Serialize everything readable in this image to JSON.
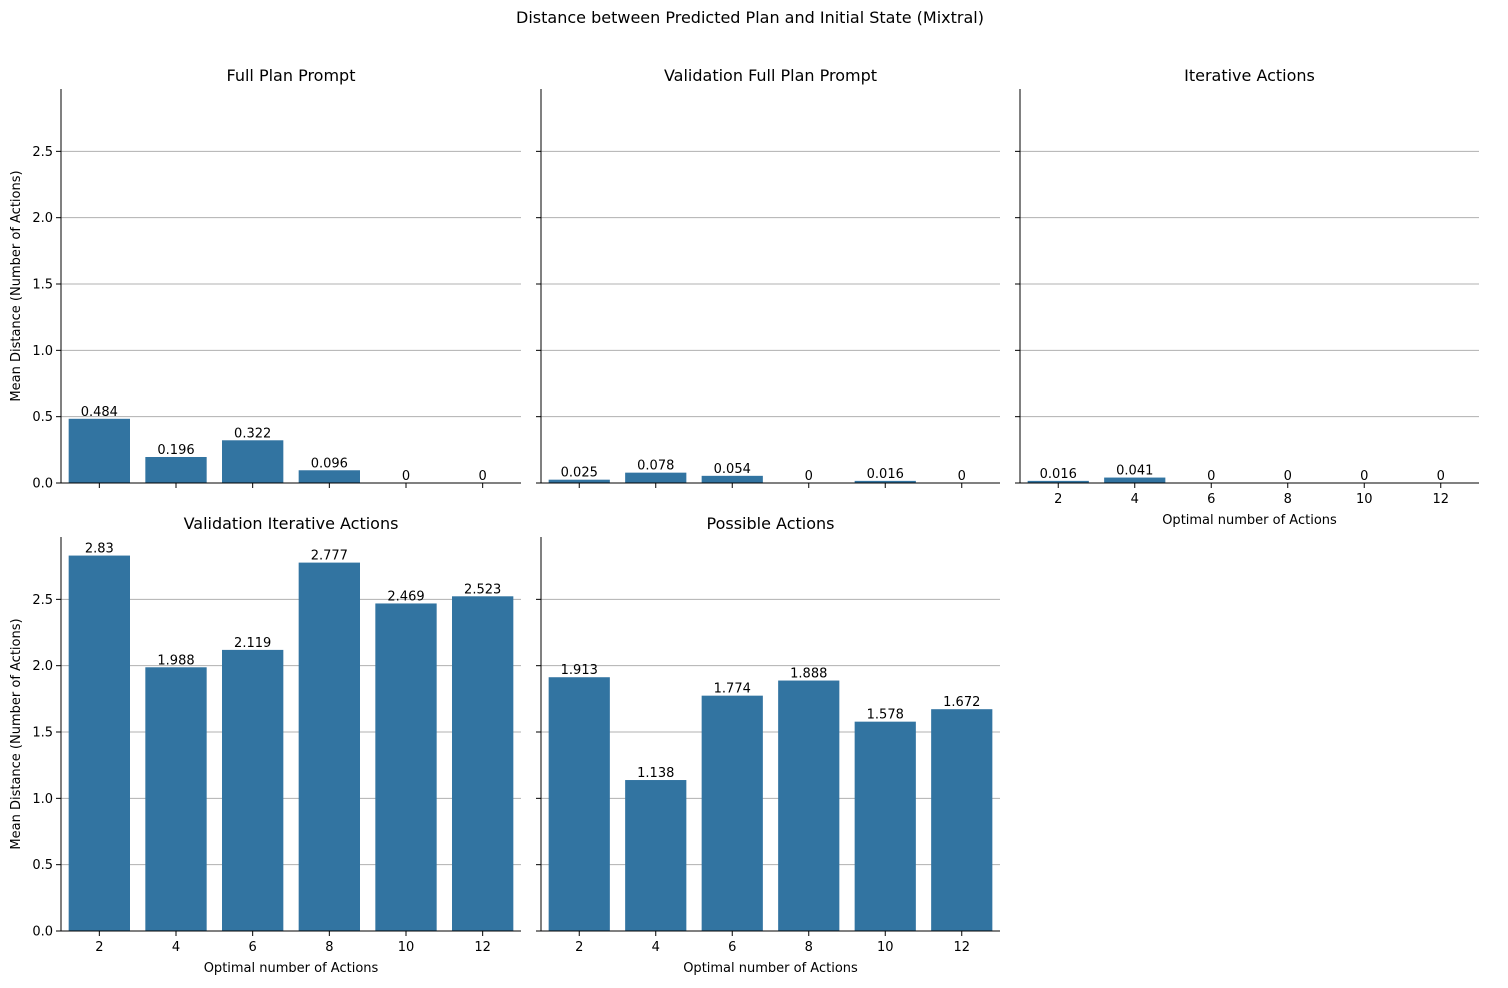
{
  "figure": {
    "suptitle": "Distance between Predicted Plan and Initial State (Mixtral)",
    "bar_color": "#3274a1",
    "grid_color": "#b0b0b0"
  },
  "chart_data": [
    {
      "type": "bar",
      "title": "Full Plan Prompt",
      "categories": [
        "2",
        "4",
        "6",
        "8",
        "10",
        "12"
      ],
      "values": [
        0.484,
        0.196,
        0.322,
        0.096,
        0,
        0
      ],
      "data_labels": [
        "0.484",
        "0.196",
        "0.322",
        "0.096",
        "0",
        "0"
      ],
      "xlabel": "",
      "ylabel": "Mean Distance (Number of Actions)",
      "yticks": [
        "0.0",
        "0.5",
        "1.0",
        "1.5",
        "2.0",
        "2.5"
      ],
      "ylim": [
        0,
        2.97
      ],
      "grid": "y",
      "show_xticklabels": false
    },
    {
      "type": "bar",
      "title": "Validation Full Plan Prompt",
      "categories": [
        "2",
        "4",
        "6",
        "8",
        "10",
        "12"
      ],
      "values": [
        0.025,
        0.078,
        0.054,
        0,
        0.016,
        0
      ],
      "data_labels": [
        "0.025",
        "0.078",
        "0.054",
        "0",
        "0.016",
        "0"
      ],
      "xlabel": "",
      "ylabel": "",
      "yticks": [
        "0.0",
        "0.5",
        "1.0",
        "1.5",
        "2.0",
        "2.5"
      ],
      "ylim": [
        0,
        2.97
      ],
      "grid": "y",
      "show_xticklabels": false
    },
    {
      "type": "bar",
      "title": "Iterative Actions",
      "categories": [
        "2",
        "4",
        "6",
        "8",
        "10",
        "12"
      ],
      "values": [
        0.016,
        0.041,
        0,
        0,
        0,
        0
      ],
      "data_labels": [
        "0.016",
        "0.041",
        "0",
        "0",
        "0",
        "0"
      ],
      "xlabel": "Optimal number of Actions",
      "ylabel": "",
      "yticks": [
        "0.0",
        "0.5",
        "1.0",
        "1.5",
        "2.0",
        "2.5"
      ],
      "ylim": [
        0,
        2.97
      ],
      "grid": "y",
      "show_xticklabels": true
    },
    {
      "type": "bar",
      "title": "Validation Iterative Actions",
      "categories": [
        "2",
        "4",
        "6",
        "8",
        "10",
        "12"
      ],
      "values": [
        2.83,
        1.988,
        2.119,
        2.777,
        2.469,
        2.523
      ],
      "data_labels": [
        "2.83",
        "1.988",
        "2.119",
        "2.777",
        "2.469",
        "2.523"
      ],
      "xlabel": "Optimal number of Actions",
      "ylabel": "Mean Distance (Number of Actions)",
      "yticks": [
        "0.0",
        "0.5",
        "1.0",
        "1.5",
        "2.0",
        "2.5"
      ],
      "ylim": [
        0,
        2.97
      ],
      "grid": "y",
      "show_xticklabels": true
    },
    {
      "type": "bar",
      "title": "Possible Actions",
      "categories": [
        "2",
        "4",
        "6",
        "8",
        "10",
        "12"
      ],
      "values": [
        1.913,
        1.138,
        1.774,
        1.888,
        1.578,
        1.672
      ],
      "data_labels": [
        "1.913",
        "1.138",
        "1.774",
        "1.888",
        "1.578",
        "1.672"
      ],
      "xlabel": "Optimal number of Actions",
      "ylabel": "",
      "yticks": [
        "0.0",
        "0.5",
        "1.0",
        "1.5",
        "2.0",
        "2.5"
      ],
      "ylim": [
        0,
        2.97
      ],
      "grid": "y",
      "show_xticklabels": true
    }
  ]
}
